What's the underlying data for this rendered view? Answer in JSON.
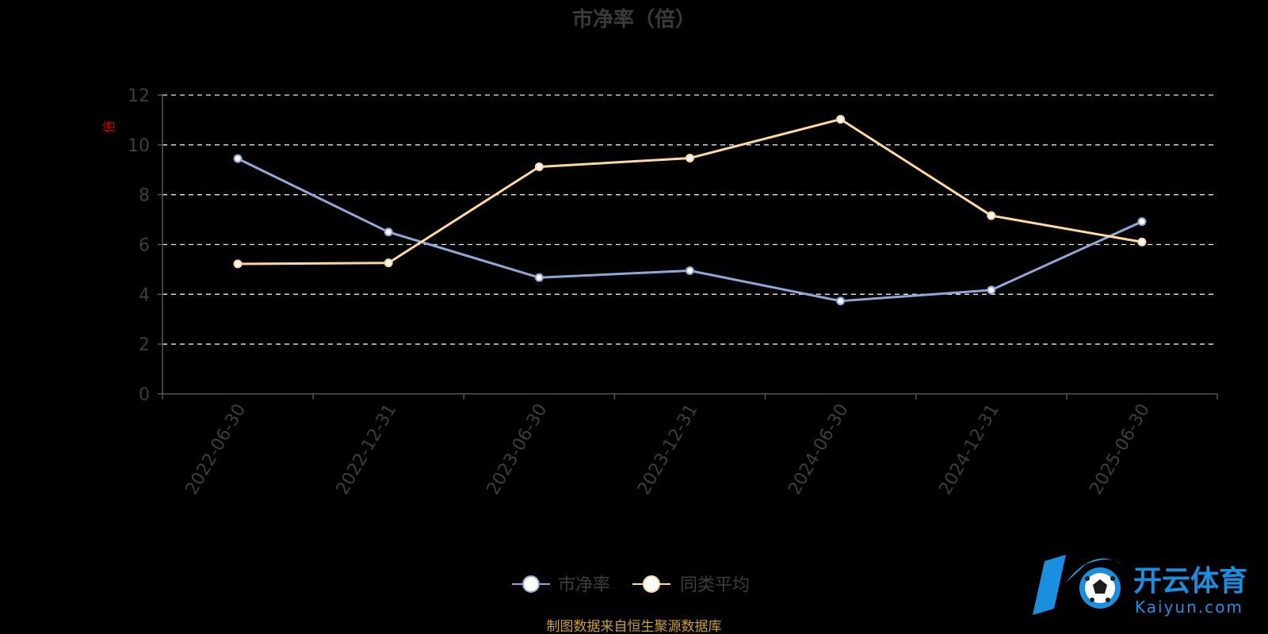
{
  "chart_data": {
    "type": "line",
    "title": "市净率（倍）",
    "unit_label": "倍",
    "categories": [
      "2022-06-30",
      "2022-12-31",
      "2023-06-30",
      "2023-12-31",
      "2024-06-30",
      "2024-12-31",
      "2025-06-30"
    ],
    "series": [
      {
        "name": "市净率",
        "color": "#8fa8d8",
        "values": [
          9.45,
          6.5,
          4.67,
          4.95,
          3.73,
          4.17,
          6.92
        ]
      },
      {
        "name": "同类平均",
        "color": "#ffd9a0",
        "values": [
          5.22,
          5.26,
          9.12,
          9.47,
          11.03,
          7.16,
          6.1
        ]
      }
    ],
    "ylim": [
      0,
      12
    ],
    "yticks": [
      "0",
      "2",
      "4",
      "6",
      "8",
      "10",
      "12"
    ],
    "grid": true,
    "legend_position": "bottom-center"
  },
  "footer": {
    "source": "制图数据来自恒生聚源数据库"
  },
  "watermark": {
    "text": "开云体育",
    "subtext": "Kaiyun.com",
    "color": "#1a8fe0"
  }
}
